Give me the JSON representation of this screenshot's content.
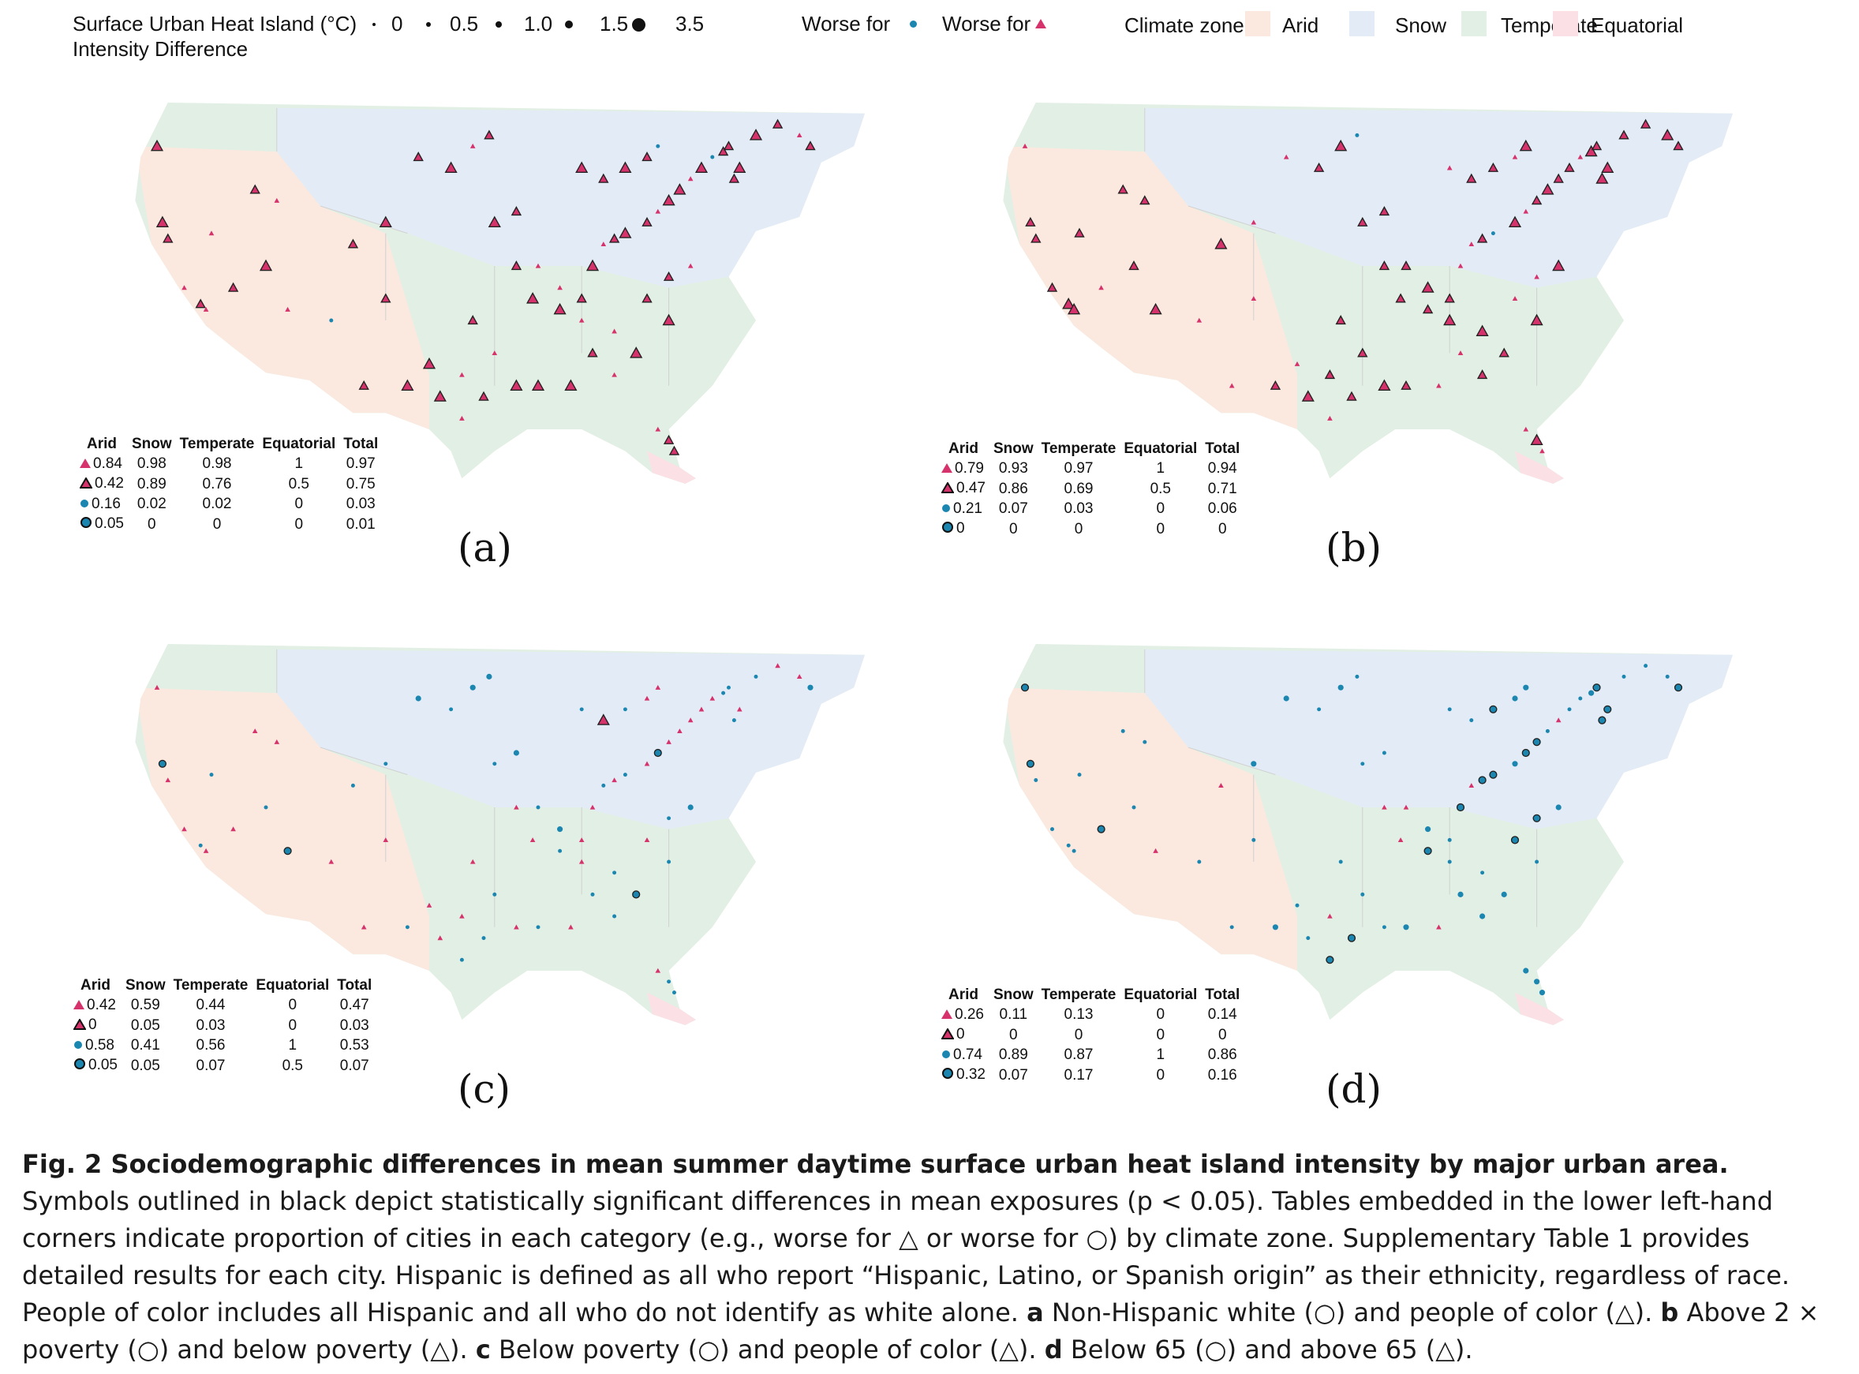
{
  "legend": {
    "size_title_line1": "Surface Urban Heat Island (°C)",
    "size_title_line2": "Intensity Difference",
    "sizes": [
      "0",
      "0.5",
      "1.0",
      "1.5",
      "3.5"
    ],
    "worse_for_label_1": "Worse for",
    "worse_for_label_2": "Worse for",
    "circle_color": "#1b86b0",
    "triangle_color": "#d6336c",
    "climate_title": "Climate zone",
    "zones": [
      {
        "name": "Arid",
        "color": "#fbe9df"
      },
      {
        "name": "Snow",
        "color": "#e3ecf6"
      },
      {
        "name": "Temperate",
        "color": "#e2efe4"
      },
      {
        "name": "Equatorial",
        "color": "#fbe1e6"
      }
    ]
  },
  "table_headers": [
    "Arid",
    "Snow",
    "Temperate",
    "Equatorial",
    "Total"
  ],
  "panels": [
    {
      "label": "(a)",
      "rows": [
        [
          "0.84",
          "0.98",
          "0.98",
          "1",
          "0.97"
        ],
        [
          "0.42",
          "0.89",
          "0.76",
          "0.5",
          "0.75"
        ],
        [
          "0.16",
          "0.02",
          "0.02",
          "0",
          "0.03"
        ],
        [
          "0.05",
          "0",
          "0",
          "0",
          "0.01"
        ]
      ]
    },
    {
      "label": "(b)",
      "rows": [
        [
          "0.79",
          "0.93",
          "0.97",
          "1",
          "0.94"
        ],
        [
          "0.47",
          "0.86",
          "0.69",
          "0.5",
          "0.71"
        ],
        [
          "0.21",
          "0.07",
          "0.03",
          "0",
          "0.06"
        ],
        [
          "0",
          "0",
          "0",
          "0",
          "0"
        ]
      ]
    },
    {
      "label": "(c)",
      "rows": [
        [
          "0.42",
          "0.59",
          "0.44",
          "0",
          "0.47"
        ],
        [
          "0",
          "0.05",
          "0.03",
          "0",
          "0.03"
        ],
        [
          "0.58",
          "0.41",
          "0.56",
          "1",
          "0.53"
        ],
        [
          "0.05",
          "0.05",
          "0.07",
          "0.5",
          "0.07"
        ]
      ]
    },
    {
      "label": "(d)",
      "rows": [
        [
          "0.26",
          "0.11",
          "0.13",
          "0",
          "0.14"
        ],
        [
          "0",
          "0",
          "0",
          "0",
          "0"
        ],
        [
          "0.74",
          "0.89",
          "0.87",
          "1",
          "0.86"
        ],
        [
          "0.32",
          "0.07",
          "0.17",
          "0",
          "0.16"
        ]
      ]
    }
  ],
  "caption": {
    "title": "Fig. 2 Sociodemographic differences in mean summer daytime surface urban heat island intensity by major urban area.",
    "body": " Symbols outlined in black depict statistically significant differences in mean exposures (p < 0.05). Tables embedded in the lower left-hand corners indicate proportion of cities in each category (e.g., worse for △ or worse for ○) by climate zone. Supplementary Table 1 provides detailed results for each city. Hispanic is defined as all who report “Hispanic, Latino, or Spanish origin” as their ethnicity, regardless of race. People of color includes all Hispanic and all who do not identify as white alone. ",
    "a_key": "a",
    "a_text": " Non-Hispanic white (○) and people of color (△). ",
    "b_key": "b",
    "b_text": " Above 2 × poverty (○) and below poverty (△). ",
    "c_key": "c",
    "c_text": " Below poverty (○) and people of color (△). ",
    "d_key": "d",
    "d_text": " Below 65 (○) and above 65 (△)."
  }
}
